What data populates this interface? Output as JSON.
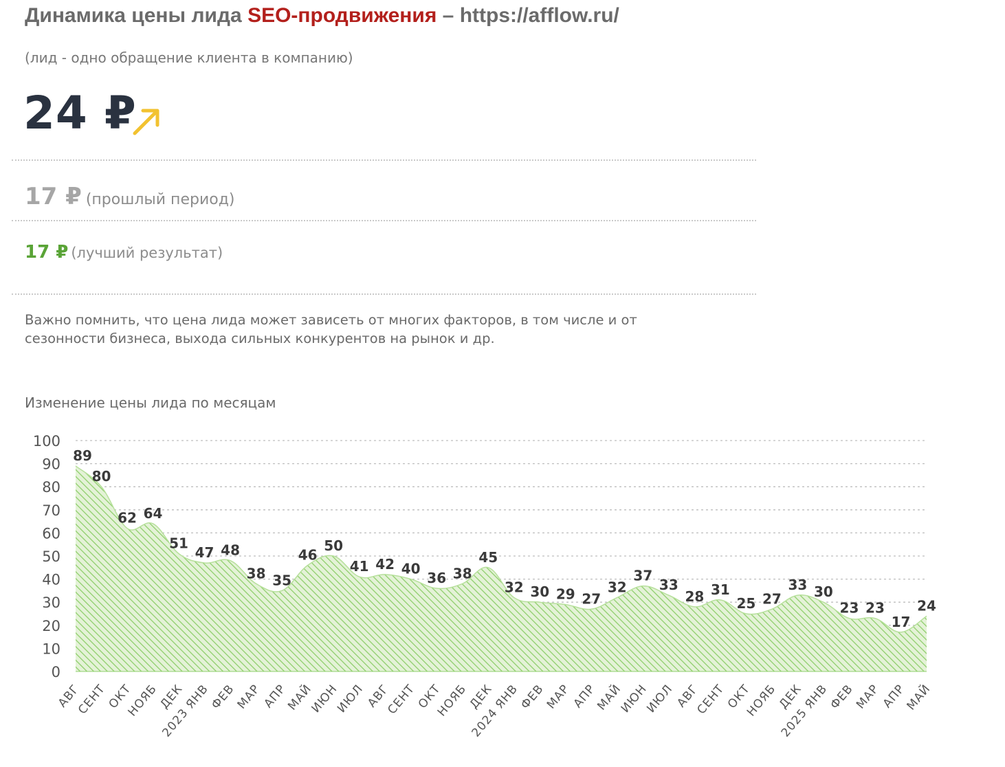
{
  "header": {
    "title_prefix": "Динамика цены лида ",
    "title_highlight": "SEO-продвижения",
    "title_suffix": " – https://afflow.ru/",
    "subtitle": "(лид - одно обращение клиента в компанию)"
  },
  "current": {
    "value": "24 ₽",
    "trend_icon": "arrow-up-right-icon",
    "trend_color": "#f2c230"
  },
  "previous": {
    "value": "17 ₽",
    "note": "(прошлый период)"
  },
  "best": {
    "value": "17 ₽",
    "note": "(лучший результат)"
  },
  "notice": "Важно помнить, что цена лида может зависеть от многих факторов, в том числе и от сезонности бизнеса, выхода сильных конкурентов на рынок и др.",
  "colors": {
    "title_highlight": "#b3201c",
    "best": "#5aa437",
    "area_fill": "#dff0cf",
    "area_hatch": "#8fcf6c"
  },
  "chart_data": {
    "type": "area",
    "title": "Изменение цены лида по месяцам",
    "categories": [
      "АВГ",
      "СЕНТ",
      "ОКТ",
      "НОЯБ",
      "ДЕК",
      "2023 ЯНВ",
      "ФЕВ",
      "МАР",
      "АПР",
      "МАЙ",
      "ИЮН",
      "ИЮЛ",
      "АВГ",
      "СЕНТ",
      "ОКТ",
      "НОЯБ",
      "ДЕК",
      "2024 ЯНВ",
      "ФЕВ",
      "МАР",
      "АПР",
      "МАЙ",
      "ИЮН",
      "ИЮЛ",
      "АВГ",
      "СЕНТ",
      "ОКТ",
      "НОЯБ",
      "ДЕК",
      "2025 ЯНВ",
      "ФЕВ",
      "МАР",
      "АПР",
      "МАЙ"
    ],
    "values": [
      89,
      80,
      62,
      64,
      51,
      47,
      48,
      38,
      35,
      46,
      50,
      41,
      42,
      40,
      36,
      38,
      45,
      32,
      30,
      29,
      27,
      32,
      37,
      33,
      28,
      31,
      25,
      27,
      33,
      30,
      23,
      23,
      17,
      24
    ],
    "yticks": [
      0,
      10,
      20,
      30,
      40,
      50,
      60,
      70,
      80,
      90,
      100
    ],
    "ylim": [
      0,
      100
    ],
    "grid": true,
    "data_labels": true
  }
}
